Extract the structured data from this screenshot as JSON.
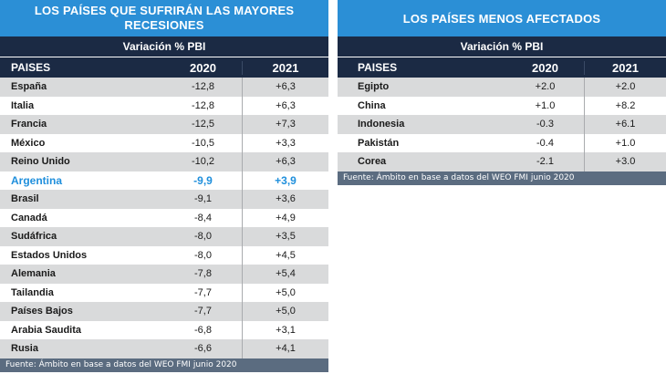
{
  "chart_data": [
    {
      "type": "table",
      "title": "LOS PAÍSES QUE SUFRIRÁN LAS MAYORES RECESIONES",
      "subtitle": "Variación % PBI",
      "columns": [
        "PAISES",
        "2020",
        "2021"
      ],
      "rows": [
        {
          "pais": "España",
          "y2020": "-12,8",
          "y2021": "+6,3"
        },
        {
          "pais": "Italia",
          "y2020": "-12,8",
          "y2021": "+6,3"
        },
        {
          "pais": "Francia",
          "y2020": "-12,5",
          "y2021": "+7,3"
        },
        {
          "pais": "México",
          "y2020": "-10,5",
          "y2021": "+3,3"
        },
        {
          "pais": "Reino Unido",
          "y2020": "-10,2",
          "y2021": "+6,3"
        },
        {
          "pais": "Argentina",
          "y2020": "-9,9",
          "y2021": "+3,9",
          "highlight": true
        },
        {
          "pais": "Brasil",
          "y2020": "-9,1",
          "y2021": "+3,6"
        },
        {
          "pais": "Canadá",
          "y2020": "-8,4",
          "y2021": "+4,9"
        },
        {
          "pais": "Sudáfrica",
          "y2020": "-8,0",
          "y2021": "+3,5"
        },
        {
          "pais": "Estados Unidos",
          "y2020": "-8,0",
          "y2021": "+4,5"
        },
        {
          "pais": "Alemania",
          "y2020": "-7,8",
          "y2021": "+5,4"
        },
        {
          "pais": "Tailandia",
          "y2020": "-7,7",
          "y2021": "+5,0"
        },
        {
          "pais": "Países Bajos",
          "y2020": "-7,7",
          "y2021": "+5,0"
        },
        {
          "pais": "Arabia Saudita",
          "y2020": "-6,8",
          "y2021": "+3,1"
        },
        {
          "pais": "Rusia",
          "y2020": "-6,6",
          "y2021": "+4,1"
        }
      ],
      "source": "Fuente: Ámbito en base a datos del WEO FMI junio 2020"
    },
    {
      "type": "table",
      "title": "LOS PAÍSES MENOS AFECTADOS",
      "subtitle": "Variación % PBI",
      "columns": [
        "PAISES",
        "2020",
        "2021"
      ],
      "rows": [
        {
          "pais": "Egipto",
          "y2020": "+2.0",
          "y2021": "+2.0"
        },
        {
          "pais": "China",
          "y2020": "+1.0",
          "y2021": "+8.2"
        },
        {
          "pais": "Indonesia",
          "y2020": "-0.3",
          "y2021": "+6.1"
        },
        {
          "pais": "Pakistán",
          "y2020": "-0.4",
          "y2021": "+1.0"
        },
        {
          "pais": "Corea",
          "y2020": "-2.1",
          "y2021": "+3.0"
        }
      ],
      "source": "Fuente: Ámbito en base a datos del WEO FMI junio 2020"
    }
  ],
  "colors": {
    "title_bar": "#2b8fd6",
    "header_dark": "#1b2a44",
    "row_shade": "#d9dadb",
    "highlight_text": "#1f8fdc",
    "footer": "#5b6c80"
  }
}
